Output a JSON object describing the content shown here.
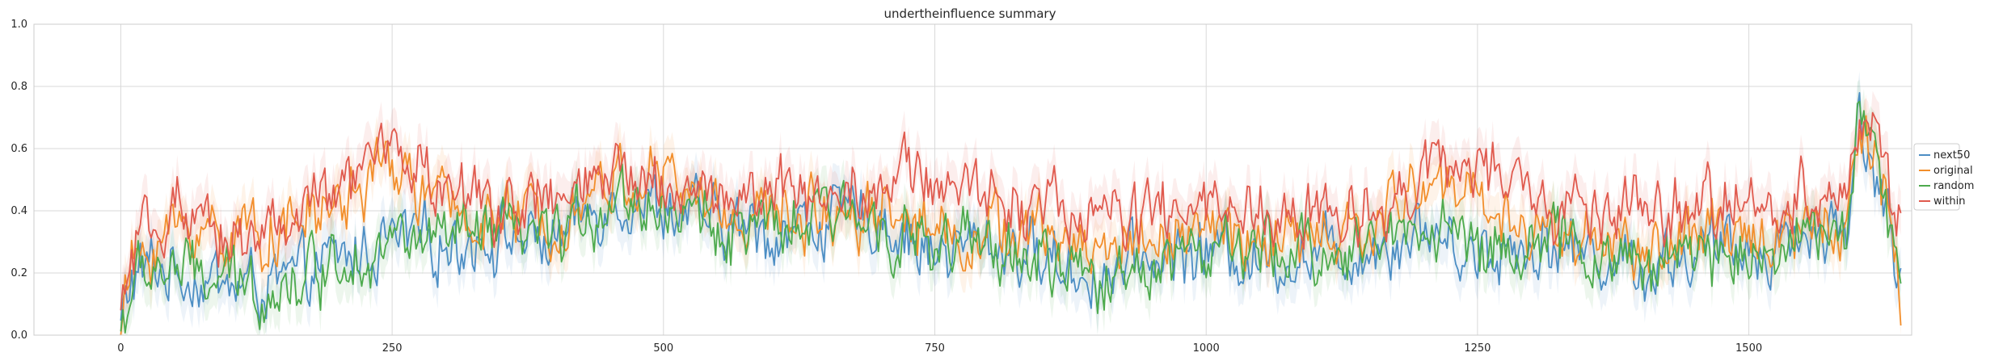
{
  "chart_data": {
    "type": "line",
    "title": "undertheinfluence summary",
    "xlabel": "",
    "ylabel": "",
    "xlim": [
      -80,
      1650
    ],
    "ylim": [
      0.0,
      1.0
    ],
    "xticks": [
      "0",
      "250",
      "500",
      "750",
      "1000",
      "1250",
      "1500"
    ],
    "yticks": [
      "0.0",
      "0.2",
      "0.4",
      "0.6",
      "0.8",
      "1.0"
    ],
    "grid": true,
    "legend_position": "right",
    "x_max": 1640,
    "series": [
      {
        "name": "next50",
        "color": "#4c8ec4",
        "anchors": [
          [
            0,
            0.03
          ],
          [
            10,
            0.18
          ],
          [
            30,
            0.22
          ],
          [
            60,
            0.2
          ],
          [
            100,
            0.16
          ],
          [
            150,
            0.16
          ],
          [
            200,
            0.24
          ],
          [
            250,
            0.3
          ],
          [
            300,
            0.3
          ],
          [
            350,
            0.32
          ],
          [
            400,
            0.3
          ],
          [
            450,
            0.45
          ],
          [
            500,
            0.42
          ],
          [
            550,
            0.35
          ],
          [
            600,
            0.33
          ],
          [
            650,
            0.37
          ],
          [
            700,
            0.38
          ],
          [
            750,
            0.26
          ],
          [
            800,
            0.3
          ],
          [
            850,
            0.25
          ],
          [
            900,
            0.18
          ],
          [
            950,
            0.25
          ],
          [
            1000,
            0.27
          ],
          [
            1050,
            0.25
          ],
          [
            1100,
            0.26
          ],
          [
            1150,
            0.28
          ],
          [
            1200,
            0.35
          ],
          [
            1250,
            0.26
          ],
          [
            1300,
            0.3
          ],
          [
            1350,
            0.27
          ],
          [
            1400,
            0.22
          ],
          [
            1450,
            0.26
          ],
          [
            1500,
            0.28
          ],
          [
            1550,
            0.32
          ],
          [
            1590,
            0.35
          ],
          [
            1600,
            0.7
          ],
          [
            1620,
            0.5
          ],
          [
            1640,
            0.15
          ]
        ]
      },
      {
        "name": "original",
        "color": "#f28e2b",
        "anchors": [
          [
            0,
            0.03
          ],
          [
            10,
            0.22
          ],
          [
            30,
            0.3
          ],
          [
            60,
            0.35
          ],
          [
            100,
            0.33
          ],
          [
            150,
            0.34
          ],
          [
            200,
            0.42
          ],
          [
            250,
            0.55
          ],
          [
            300,
            0.4
          ],
          [
            350,
            0.37
          ],
          [
            400,
            0.38
          ],
          [
            450,
            0.5
          ],
          [
            500,
            0.5
          ],
          [
            550,
            0.4
          ],
          [
            600,
            0.38
          ],
          [
            650,
            0.4
          ],
          [
            700,
            0.42
          ],
          [
            750,
            0.34
          ],
          [
            800,
            0.33
          ],
          [
            850,
            0.32
          ],
          [
            900,
            0.28
          ],
          [
            950,
            0.32
          ],
          [
            1000,
            0.33
          ],
          [
            1050,
            0.3
          ],
          [
            1100,
            0.3
          ],
          [
            1150,
            0.33
          ],
          [
            1200,
            0.5
          ],
          [
            1250,
            0.45
          ],
          [
            1300,
            0.33
          ],
          [
            1350,
            0.33
          ],
          [
            1400,
            0.26
          ],
          [
            1450,
            0.3
          ],
          [
            1500,
            0.33
          ],
          [
            1550,
            0.35
          ],
          [
            1590,
            0.38
          ],
          [
            1600,
            0.65
          ],
          [
            1620,
            0.55
          ],
          [
            1640,
            0.12
          ]
        ]
      },
      {
        "name": "random",
        "color": "#4daa4d",
        "anchors": [
          [
            0,
            0.02
          ],
          [
            10,
            0.15
          ],
          [
            30,
            0.22
          ],
          [
            60,
            0.2
          ],
          [
            100,
            0.16
          ],
          [
            150,
            0.16
          ],
          [
            200,
            0.25
          ],
          [
            250,
            0.3
          ],
          [
            300,
            0.3
          ],
          [
            350,
            0.32
          ],
          [
            400,
            0.3
          ],
          [
            450,
            0.45
          ],
          [
            500,
            0.42
          ],
          [
            550,
            0.35
          ],
          [
            600,
            0.32
          ],
          [
            650,
            0.38
          ],
          [
            700,
            0.38
          ],
          [
            750,
            0.27
          ],
          [
            800,
            0.28
          ],
          [
            850,
            0.23
          ],
          [
            900,
            0.16
          ],
          [
            950,
            0.25
          ],
          [
            1000,
            0.27
          ],
          [
            1050,
            0.25
          ],
          [
            1100,
            0.27
          ],
          [
            1150,
            0.28
          ],
          [
            1200,
            0.38
          ],
          [
            1250,
            0.28
          ],
          [
            1300,
            0.3
          ],
          [
            1350,
            0.27
          ],
          [
            1400,
            0.22
          ],
          [
            1450,
            0.26
          ],
          [
            1500,
            0.28
          ],
          [
            1550,
            0.3
          ],
          [
            1590,
            0.35
          ],
          [
            1600,
            0.75
          ],
          [
            1620,
            0.5
          ],
          [
            1640,
            0.15
          ]
        ]
      },
      {
        "name": "within",
        "color": "#e05a4e",
        "anchors": [
          [
            0,
            0.05
          ],
          [
            10,
            0.25
          ],
          [
            30,
            0.32
          ],
          [
            50,
            0.45
          ],
          [
            60,
            0.3
          ],
          [
            100,
            0.33
          ],
          [
            150,
            0.35
          ],
          [
            200,
            0.45
          ],
          [
            250,
            0.62
          ],
          [
            300,
            0.45
          ],
          [
            350,
            0.42
          ],
          [
            400,
            0.42
          ],
          [
            450,
            0.5
          ],
          [
            500,
            0.5
          ],
          [
            550,
            0.45
          ],
          [
            600,
            0.45
          ],
          [
            650,
            0.47
          ],
          [
            700,
            0.5
          ],
          [
            750,
            0.5
          ],
          [
            800,
            0.45
          ],
          [
            850,
            0.42
          ],
          [
            900,
            0.38
          ],
          [
            950,
            0.38
          ],
          [
            1000,
            0.4
          ],
          [
            1050,
            0.38
          ],
          [
            1100,
            0.38
          ],
          [
            1150,
            0.4
          ],
          [
            1200,
            0.52
          ],
          [
            1250,
            0.55
          ],
          [
            1300,
            0.42
          ],
          [
            1350,
            0.4
          ],
          [
            1400,
            0.38
          ],
          [
            1450,
            0.4
          ],
          [
            1500,
            0.42
          ],
          [
            1550,
            0.45
          ],
          [
            1590,
            0.48
          ],
          [
            1600,
            0.7
          ],
          [
            1620,
            0.6
          ],
          [
            1640,
            0.35
          ]
        ]
      }
    ]
  }
}
